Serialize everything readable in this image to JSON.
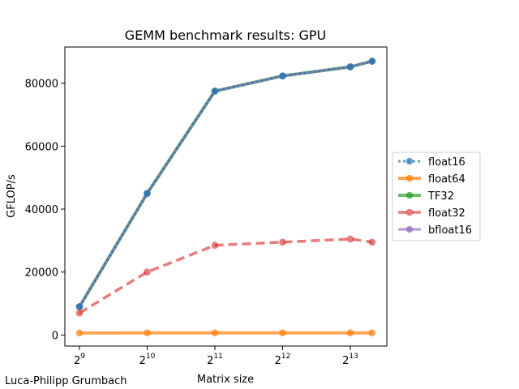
{
  "chart_data": {
    "type": "line",
    "title": "GEMM benchmark results: GPU",
    "xlabel": "Matrix size",
    "ylabel": "GFLOP/s",
    "credit": "Luca-Philipp Grumbach",
    "x_scale": "log2",
    "x": [
      512,
      1024,
      2048,
      4096,
      8192,
      10240
    ],
    "xticks": [
      {
        "value": 512,
        "base": "2",
        "exp": "9"
      },
      {
        "value": 1024,
        "base": "2",
        "exp": "10"
      },
      {
        "value": 2048,
        "base": "2",
        "exp": "11"
      },
      {
        "value": 4096,
        "base": "2",
        "exp": "12"
      },
      {
        "value": 8192,
        "base": "2",
        "exp": "13"
      }
    ],
    "yticks": [
      0,
      20000,
      40000,
      60000,
      80000
    ],
    "ylim": [
      -3500,
      91500
    ],
    "grid": false,
    "legend_position": "right, outside plot",
    "series": [
      {
        "name": "float16",
        "color": "#1f77b4",
        "style": "dotted",
        "values": [
          9000,
          45000,
          77500,
          82300,
          85200,
          87000
        ]
      },
      {
        "name": "float64",
        "color": "#ff7f0e",
        "style": "solid",
        "values": [
          650,
          700,
          700,
          700,
          700,
          700
        ]
      },
      {
        "name": "TF32",
        "color": "#2ca02c",
        "style": "solid",
        "values": [
          9000,
          45000,
          77500,
          82300,
          85200,
          87000
        ]
      },
      {
        "name": "float32",
        "color": "#d62728",
        "style": "dashed",
        "values": [
          7000,
          20000,
          28500,
          29500,
          30500,
          29500
        ]
      },
      {
        "name": "bfloat16",
        "color": "#9467bd",
        "style": "solid",
        "values": [
          9000,
          45000,
          77500,
          82300,
          85200,
          87000
        ]
      }
    ]
  }
}
